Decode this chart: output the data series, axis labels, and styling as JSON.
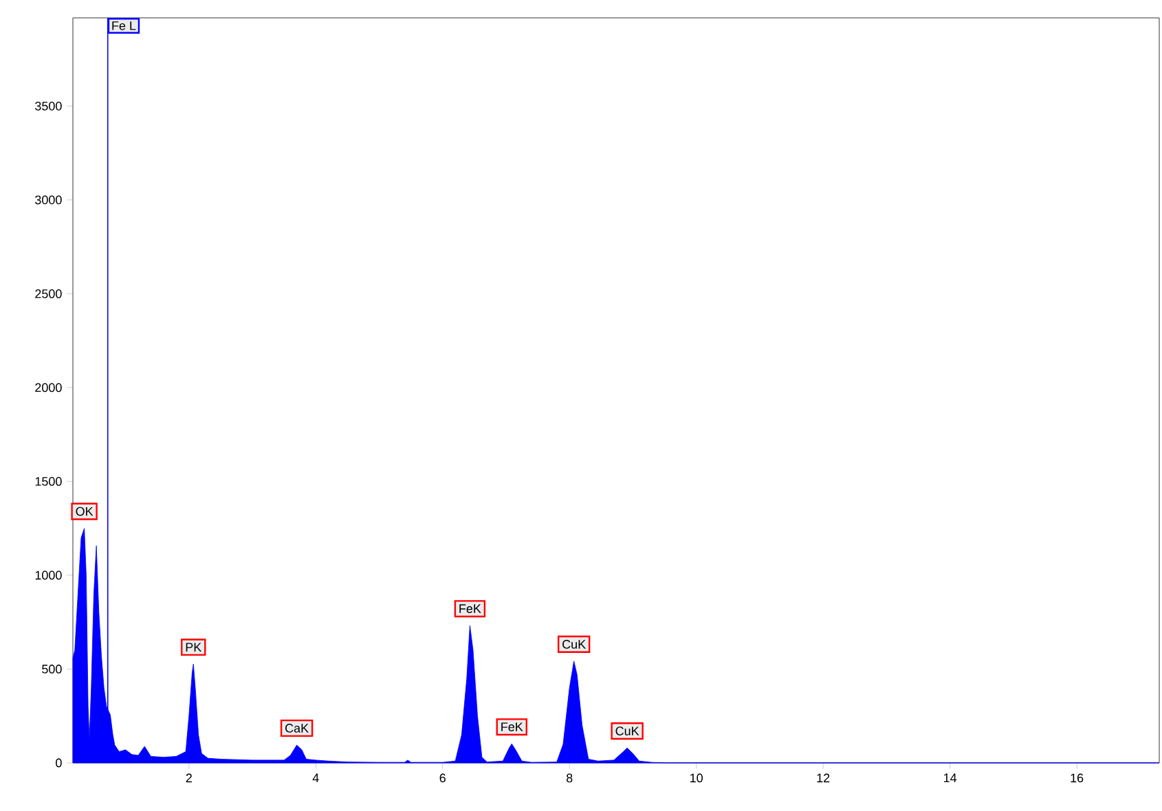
{
  "chart_data": {
    "type": "area",
    "x": [
      0.17,
      0.2,
      0.25,
      0.3,
      0.35,
      0.38,
      0.41,
      0.43,
      0.46,
      0.5,
      0.54,
      0.58,
      0.62,
      0.66,
      0.7,
      0.76,
      0.8,
      0.83,
      0.9,
      1.0,
      1.1,
      1.2,
      1.3,
      1.4,
      1.6,
      1.8,
      1.95,
      2.0,
      2.05,
      2.07,
      2.1,
      2.15,
      2.2,
      2.3,
      2.5,
      3.0,
      3.5,
      3.6,
      3.7,
      3.78,
      3.85,
      4.0,
      4.2,
      4.5,
      5.0,
      5.4,
      5.45,
      5.5,
      6.0,
      6.2,
      6.3,
      6.38,
      6.43,
      6.48,
      6.55,
      6.62,
      6.7,
      6.95,
      7.05,
      7.09,
      7.15,
      7.25,
      7.4,
      7.8,
      7.9,
      8.0,
      8.07,
      8.12,
      8.2,
      8.3,
      8.45,
      8.7,
      8.85,
      8.91,
      9.0,
      9.1,
      9.3,
      9.5,
      17.3
    ],
    "series": [
      {
        "color": "#0000ff",
        "values": [
          560,
          600,
          900,
          1200,
          1250,
          1000,
          300,
          130,
          400,
          900,
          1157,
          800,
          570,
          400,
          300,
          256,
          150,
          95,
          60,
          70,
          45,
          40,
          88,
          35,
          30,
          35,
          60,
          250,
          480,
          527,
          400,
          150,
          50,
          25,
          20,
          15,
          15,
          40,
          95,
          70,
          20,
          15,
          10,
          5,
          3,
          3,
          15,
          3,
          3,
          10,
          150,
          450,
          732,
          600,
          250,
          30,
          5,
          10,
          80,
          102,
          70,
          10,
          3,
          5,
          100,
          400,
          542,
          470,
          200,
          20,
          10,
          15,
          60,
          80,
          50,
          10,
          3,
          0,
          0
        ]
      }
    ],
    "xlim": [
      0.17,
      17.3
    ],
    "ylim": [
      0,
      3970
    ],
    "xticks": [
      2,
      4,
      6,
      8,
      10,
      12,
      14,
      16
    ],
    "yticks": [
      0,
      500,
      1000,
      1500,
      2000,
      2500,
      3000,
      3500
    ],
    "ref_lines": [
      {
        "axis": "x",
        "value": 0.72,
        "label": "Fe L",
        "color": "#0000ff"
      }
    ],
    "annotations": [
      {
        "text": "OK",
        "x": 0.35,
        "y": 1250
      },
      {
        "text": "PK",
        "x": 2.07,
        "y": 527
      },
      {
        "text": "CaK",
        "x": 3.7,
        "y": 95
      },
      {
        "text": "FeK",
        "x": 6.43,
        "y": 732
      },
      {
        "text": "FeK",
        "x": 7.09,
        "y": 102
      },
      {
        "text": "CuK",
        "x": 8.07,
        "y": 542
      },
      {
        "text": "CuK",
        "x": 8.91,
        "y": 80
      }
    ],
    "grid": false
  }
}
